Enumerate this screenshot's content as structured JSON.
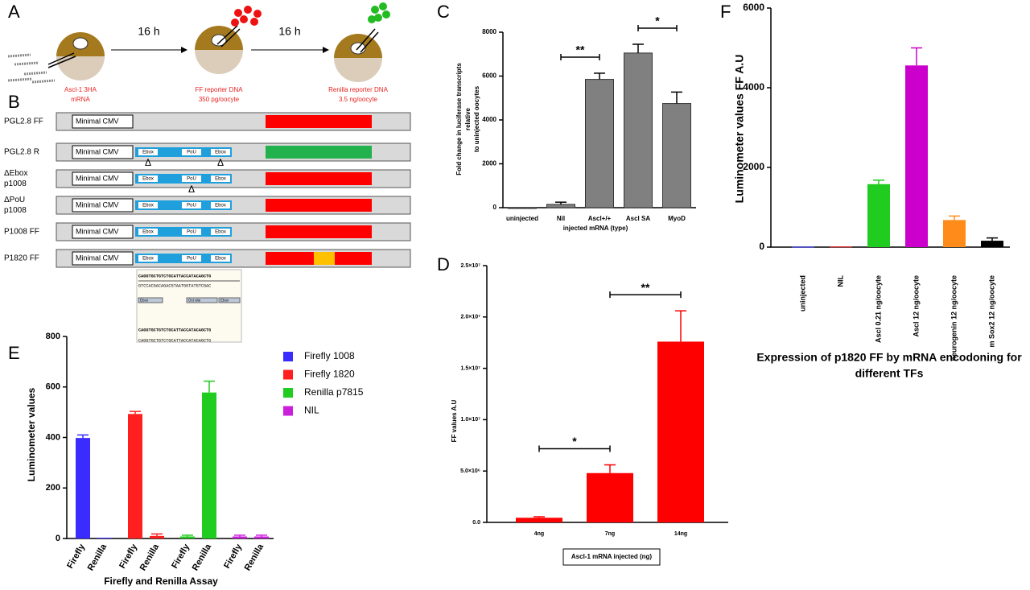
{
  "panel_labels": [
    "A",
    "B",
    "C",
    "D",
    "E",
    "F"
  ],
  "panel_a": {
    "times": [
      "16 h",
      "16 h"
    ],
    "steps": [
      [
        "Ascl-1 3HA",
        "mRNA"
      ],
      [
        "FF reporter DNA",
        "350 pg/oocyte"
      ],
      [
        "Renilla  reporter DNA",
        "3.5 ng/oocyte"
      ]
    ]
  },
  "panel_b": {
    "constructs": [
      {
        "name": [
          "PGL2.8 FF"
        ],
        "promoter": "Minimal CMV",
        "elements": [],
        "reporter": "#ff0000",
        "insert": null
      },
      {
        "name": [
          "PGL2.8 R"
        ],
        "promoter": "Minimal CMV",
        "elements": [
          {
            "label": "Ebox"
          },
          {
            "label": "PoU"
          },
          {
            "label": "Ebox"
          }
        ],
        "reporter": "#22b14c",
        "insert": null
      },
      {
        "name": [
          "ΔEbox",
          "p1008"
        ],
        "promoter": "Minimal CMV",
        "elements": [
          {
            "label": "Ebox",
            "mark": "Δ"
          },
          {
            "label": "PoU"
          },
          {
            "label": "Ebox",
            "mark": "Δ"
          }
        ],
        "reporter": "#ff0000",
        "insert": null
      },
      {
        "name": [
          "ΔPoU",
          "p1008"
        ],
        "promoter": "Minimal CMV",
        "elements": [
          {
            "label": "Ebox"
          },
          {
            "label": "PoU",
            "mark": "Δ"
          },
          {
            "label": "Ebox"
          }
        ],
        "reporter": "#ff0000",
        "insert": null
      },
      {
        "name": [
          "P1008 FF"
        ],
        "promoter": "Minimal CMV",
        "elements": [
          {
            "label": "Ebox"
          },
          {
            "label": "PoU"
          },
          {
            "label": "Ebox"
          }
        ],
        "reporter": "#ff0000",
        "insert": null
      },
      {
        "name": [
          "P1820 FF"
        ],
        "promoter": "Minimal CMV",
        "elements": [
          {
            "label": "Ebox"
          },
          {
            "label": "PoU"
          },
          {
            "label": "Ebox"
          }
        ],
        "reporter": "#ff0000",
        "insert": "#ffc000"
      }
    ],
    "sequence": {
      "top": "CAGGTGCTGTCTGCATTACCATACAGCTG",
      "complement": "GTCCACGACAGACGTAATGGTATGTCGAC",
      "features": [
        "Ebox",
        "Oct site",
        "Ebox"
      ],
      "aligned": "CAGGTGCTGTCTGCATTACCATACAGCTG",
      "mutant": "CAGGTGCTGTCTGCATTACCATACAGCTG"
    }
  },
  "chart_data": [
    {
      "type": "bar",
      "panel": "C",
      "categories": [
        "uninjected",
        "Nil",
        "Ascl+/+",
        "Ascl SA",
        "MyoD"
      ],
      "values": [
        0,
        150,
        5850,
        7050,
        4750
      ],
      "errors": [
        0,
        100,
        280,
        400,
        520
      ],
      "color": "#808080",
      "ylim": [
        0,
        8000
      ],
      "yticks": [
        0,
        2000,
        4000,
        6000,
        8000
      ],
      "ylabel": [
        "Fold change in luciferase transcripts",
        "relative",
        "to uninjected oocytes"
      ],
      "xlabel": "injected mRNA (type)",
      "significance": [
        {
          "text": "**",
          "between": [
            "Nil",
            "Ascl+/+"
          ]
        },
        {
          "text": "*",
          "between": [
            "Ascl SA",
            "MyoD"
          ]
        }
      ]
    },
    {
      "type": "bar",
      "panel": "D",
      "categories": [
        "4ng",
        "7ng",
        "14ng"
      ],
      "values": [
        450000,
        4800000,
        17600000
      ],
      "errors": [
        100000,
        800000,
        3000000
      ],
      "color": "#ff0000",
      "ylim": [
        0,
        25000000
      ],
      "yticks": [
        {
          "value": 0,
          "label": "0.0"
        },
        {
          "value": 5000000,
          "label": "5.0×10⁶"
        },
        {
          "value": 10000000,
          "label": "1.0×10⁷"
        },
        {
          "value": 15000000,
          "label": "1.5×10⁷"
        },
        {
          "value": 20000000,
          "label": "2.0×10⁷"
        },
        {
          "value": 25000000,
          "label": "2.5×10⁷"
        }
      ],
      "ylabel": [
        "FF values A.U"
      ],
      "xlabel": "Ascl-1 mRNA injected (ng)",
      "significance": [
        {
          "text": "*",
          "between": [
            "4ng",
            "7ng"
          ]
        },
        {
          "text": "**",
          "between": [
            "7ng",
            "14ng"
          ]
        }
      ]
    },
    {
      "type": "grouped_bar",
      "panel": "E",
      "categories": [
        "Firefly",
        "Renilla",
        "Firefly",
        "Renilla",
        "Firefly",
        "Renilla",
        "Firefly",
        "Renilla"
      ],
      "series": [
        {
          "name": "Firefly 1008",
          "color": "#3a2bff",
          "values": [
            398,
            3,
            null,
            null,
            null,
            null,
            null,
            null
          ],
          "errors": [
            12,
            0,
            null,
            null,
            null,
            null,
            null,
            null
          ]
        },
        {
          "name": "Firefly 1820",
          "color": "#ff1f1f",
          "values": [
            null,
            null,
            493,
            10,
            null,
            null,
            null,
            null
          ],
          "errors": [
            null,
            null,
            10,
            8,
            null,
            null,
            null,
            null
          ]
        },
        {
          "name": "Renilla p7815",
          "color": "#1fcc1f",
          "values": [
            null,
            null,
            null,
            null,
            8,
            578,
            null,
            null
          ],
          "errors": [
            null,
            null,
            null,
            null,
            5,
            45,
            null,
            null
          ]
        },
        {
          "name": "NIL",
          "color": "#cc1fdd",
          "values": [
            null,
            null,
            null,
            null,
            null,
            null,
            8,
            8
          ],
          "errors": [
            null,
            null,
            null,
            null,
            null,
            null,
            5,
            5
          ]
        }
      ],
      "ylim": [
        0,
        800
      ],
      "yticks": [
        0,
        200,
        400,
        600,
        800
      ],
      "ylabel": [
        "Luminometer values"
      ],
      "xlabel": "Firefly and Renilla Assay",
      "legend": "right"
    },
    {
      "type": "bar",
      "panel": "F",
      "categories": [
        "uninjected",
        "NIL",
        "Ascl 0.21 ng/oocyte",
        "Ascl 12 ng/oocyte",
        "neurogenin 12 ng/oocyte",
        "m Sox2 12 ng/oocyte"
      ],
      "values": [
        10,
        15,
        1580,
        4560,
        680,
        160
      ],
      "errors": [
        0,
        0,
        100,
        440,
        100,
        70
      ],
      "colors": [
        "#2a2aff",
        "#ff2020",
        "#1fcc1f",
        "#cc00cc",
        "#ff8c1a",
        "#000000"
      ],
      "ylim": [
        0,
        6000
      ],
      "yticks": [
        0,
        2000,
        4000,
        6000
      ],
      "ylabel": [
        "Luminometer values FF A.U"
      ],
      "caption": [
        "Expression of p1820 FF by mRNA encodoning for",
        "different TFs"
      ]
    }
  ]
}
